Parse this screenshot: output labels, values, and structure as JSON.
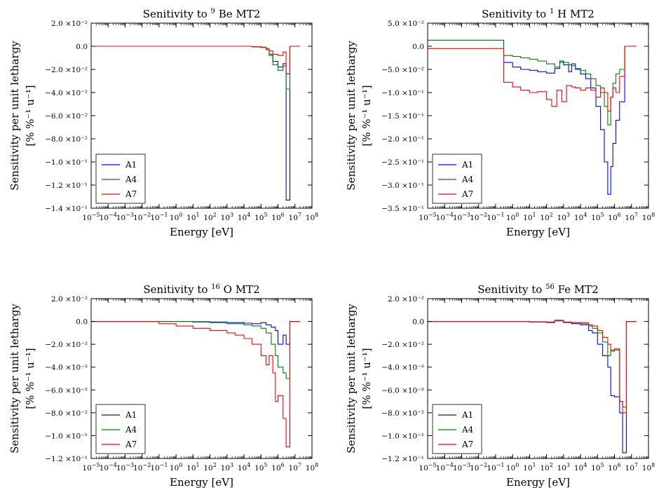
{
  "colors": {
    "A1": "#0000ff",
    "A4": "#008000",
    "A7": "#ff0000"
  },
  "chart_data": [
    {
      "type": "line",
      "title_prefix": "Senitivity to ",
      "title_sup": "9",
      "title_rest": "Be MT2",
      "xlabel": "Energy [eV]",
      "ylabel_line1": "Sensitivity per unit lethargy",
      "ylabel_line2": "[% %⁻¹ u⁻¹]",
      "x_scale": "log",
      "xlim": [
        1e-05,
        100000000.0
      ],
      "ylim": [
        -0.14,
        0.02
      ],
      "yticks": [
        0.02,
        0,
        -0.02,
        -0.04,
        -0.06,
        -0.08,
        -0.1,
        -0.12,
        -0.14
      ],
      "ytick_labels": [
        "2.0 ×10⁻²",
        "0.0",
        "−2.0 ×10⁻²",
        "−4.0 ×10⁻²",
        "−6.0 ×10⁻²",
        "−8.0 ×10⁻²",
        "−1.0 ×10⁻¹",
        "−1.2 ×10⁻¹",
        "−1.4 ×10⁻¹"
      ],
      "legend_position": "lower left",
      "series": [
        {
          "name": "A1",
          "x": [
            1e-05,
            10000.0,
            30000.0,
            100000.0,
            200000.0,
            300000.0,
            500000.0,
            1000000.0,
            2000000.0,
            3000000.0,
            5000000.0,
            20000000.0
          ],
          "y": [
            0,
            0,
            -0.0005,
            -0.001,
            -0.003,
            -0.007,
            -0.013,
            -0.018,
            -0.015,
            -0.133,
            0,
            0
          ]
        },
        {
          "name": "A4",
          "x": [
            1e-05,
            10000.0,
            30000.0,
            100000.0,
            200000.0,
            300000.0,
            500000.0,
            1000000.0,
            2000000.0,
            3000000.0,
            5000000.0,
            20000000.0
          ],
          "y": [
            0,
            0,
            -0.0005,
            -0.001,
            -0.003,
            -0.008,
            -0.016,
            -0.021,
            -0.017,
            -0.037,
            0,
            0
          ]
        },
        {
          "name": "A7",
          "x": [
            1e-05,
            10000.0,
            30000.0,
            100000.0,
            200000.0,
            300000.0,
            500000.0,
            1000000.0,
            2000000.0,
            3000000.0,
            5000000.0,
            20000000.0
          ],
          "y": [
            0,
            0,
            -0.0003,
            -0.0008,
            -0.002,
            -0.004,
            -0.007,
            -0.008,
            -0.005,
            -0.024,
            0,
            0
          ]
        }
      ]
    },
    {
      "type": "line",
      "title_prefix": "Senitivity to ",
      "title_sup": "1",
      "title_rest": "H MT2",
      "xlabel": "Energy [eV]",
      "ylabel_line1": "Sensitivity per unit lethargy",
      "ylabel_line2": "[% %⁻¹ u⁻¹]",
      "x_scale": "log",
      "xlim": [
        1e-05,
        100000000.0
      ],
      "ylim": [
        -0.35,
        0.05
      ],
      "yticks": [
        0.05,
        0,
        -0.05,
        -0.1,
        -0.15,
        -0.2,
        -0.25,
        -0.3,
        -0.35
      ],
      "ytick_labels": [
        "5.0 ×10⁻²",
        "0.0",
        "−5.0 ×10⁻²",
        "−1.0 ×10⁻¹",
        "−1.5 ×10⁻¹",
        "−2.0 ×10⁻¹",
        "−2.5 ×10⁻¹",
        "−3.0 ×10⁻¹",
        "−3.5 ×10⁻¹"
      ],
      "legend_position": "lower left",
      "series": [
        {
          "name": "A1",
          "x": [
            1e-05,
            0.1,
            0.3,
            1,
            3,
            10,
            30,
            100,
            300,
            600,
            1000,
            2000,
            3000,
            5000,
            10000.0,
            20000.0,
            40000.0,
            80000.0,
            150000.0,
            250000.0,
            400000.0,
            600000.0,
            800000.0,
            1200000.0,
            2000000.0,
            4000000.0,
            20000000.0
          ],
          "y": [
            0.013,
            0.013,
            -0.035,
            -0.045,
            -0.05,
            -0.052,
            -0.055,
            -0.058,
            -0.048,
            -0.032,
            -0.04,
            -0.055,
            -0.038,
            -0.05,
            -0.06,
            -0.07,
            -0.09,
            -0.13,
            -0.18,
            -0.25,
            -0.32,
            -0.26,
            -0.21,
            -0.16,
            -0.12,
            0,
            0
          ]
        },
        {
          "name": "A4",
          "x": [
            1e-05,
            0.1,
            0.3,
            1,
            3,
            10,
            30,
            100,
            300,
            600,
            1000,
            2000,
            3000,
            5000,
            10000.0,
            20000.0,
            40000.0,
            80000.0,
            150000.0,
            250000.0,
            400000.0,
            600000.0,
            800000.0,
            1200000.0,
            2000000.0,
            4000000.0,
            20000000.0
          ],
          "y": [
            0.013,
            0.013,
            -0.02,
            -0.022,
            -0.025,
            -0.028,
            -0.032,
            -0.038,
            -0.045,
            -0.035,
            -0.035,
            -0.04,
            -0.042,
            -0.048,
            -0.052,
            -0.06,
            -0.07,
            -0.085,
            -0.1,
            -0.13,
            -0.17,
            -0.11,
            -0.08,
            -0.06,
            -0.05,
            0,
            0
          ]
        },
        {
          "name": "A7",
          "x": [
            1e-05,
            0.1,
            0.3,
            1,
            3,
            10,
            30,
            100,
            200,
            400,
            800,
            1500,
            3000,
            5000,
            10000.0,
            20000.0,
            40000.0,
            80000.0,
            150000.0,
            250000.0,
            400000.0,
            600000.0,
            800000.0,
            1200000.0,
            2000000.0,
            4000000.0,
            20000000.0
          ],
          "y": [
            -0.005,
            -0.005,
            -0.078,
            -0.088,
            -0.095,
            -0.1,
            -0.098,
            -0.115,
            -0.13,
            -0.095,
            -0.12,
            -0.085,
            -0.088,
            -0.09,
            -0.095,
            -0.09,
            -0.095,
            -0.11,
            -0.09,
            -0.1,
            -0.14,
            -0.11,
            -0.09,
            -0.1,
            -0.065,
            0,
            0
          ]
        }
      ]
    },
    {
      "type": "line",
      "title_prefix": "Senitivity to ",
      "title_sup": "16",
      "title_rest": "O MT2",
      "xlabel": "Energy [eV]",
      "ylabel_line1": "Sensitivity per unit lethargy",
      "ylabel_line2": "[% %⁻¹ u⁻¹]",
      "x_scale": "log",
      "xlim": [
        1e-05,
        100000000.0
      ],
      "ylim": [
        -0.12,
        0.02
      ],
      "yticks": [
        0.02,
        0,
        -0.02,
        -0.04,
        -0.06,
        -0.08,
        -0.1,
        -0.12
      ],
      "ytick_labels": [
        "2.0 ×10⁻²",
        "0.0",
        "−2.0 ×10⁻²",
        "−4.0 ×10⁻²",
        "−6.0 ×10⁻²",
        "−8.0 ×10⁻²",
        "−1.0 ×10⁻¹",
        "−1.2 ×10⁻¹"
      ],
      "legend_position": "lower left",
      "series": [
        {
          "name": "A1",
          "x": [
            1e-05,
            1,
            10,
            100,
            1000,
            10000.0,
            30000.0,
            100000.0,
            200000.0,
            400000.0,
            700000.0,
            1000000.0,
            2000000.0,
            3000000.0,
            5000000.0,
            20000000.0
          ],
          "y": [
            0,
            0,
            -0.0002,
            -0.0005,
            -0.001,
            -0.0015,
            -0.002,
            -0.001,
            -0.003,
            -0.005,
            -0.008,
            -0.02,
            -0.012,
            -0.02,
            0,
            0
          ]
        },
        {
          "name": "A4",
          "x": [
            1e-05,
            1,
            10,
            100,
            1000,
            10000.0,
            30000.0,
            100000.0,
            200000.0,
            400000.0,
            700000.0,
            1000000.0,
            2000000.0,
            3000000.0,
            5000000.0,
            20000000.0
          ],
          "y": [
            0,
            0,
            -0.0005,
            -0.001,
            -0.002,
            -0.003,
            -0.004,
            -0.006,
            -0.01,
            -0.02,
            -0.03,
            -0.04,
            -0.045,
            -0.05,
            0,
            0
          ]
        },
        {
          "name": "A7",
          "x": [
            1e-05,
            0.1,
            1,
            10,
            100,
            1000,
            3000,
            10000.0,
            30000.0,
            100000.0,
            200000.0,
            300000.0,
            500000.0,
            700000.0,
            1000000.0,
            2000000.0,
            3000000.0,
            5000000.0,
            20000000.0
          ],
          "y": [
            0,
            -0.002,
            -0.004,
            -0.006,
            -0.008,
            -0.01,
            -0.012,
            -0.015,
            -0.02,
            -0.03,
            -0.038,
            -0.03,
            -0.045,
            -0.07,
            -0.065,
            -0.085,
            -0.11,
            0,
            0
          ]
        }
      ]
    },
    {
      "type": "line",
      "title_prefix": "Senitivity to ",
      "title_sup": "56",
      "title_rest": "Fe MT2",
      "xlabel": "Energy [eV]",
      "ylabel_line1": "Sensitivity per unit lethargy",
      "ylabel_line2": "[% %⁻¹ u⁻¹]",
      "x_scale": "log",
      "xlim": [
        1e-05,
        100000000.0
      ],
      "ylim": [
        -0.12,
        0.02
      ],
      "yticks": [
        0.02,
        0,
        -0.02,
        -0.04,
        -0.06,
        -0.08,
        -0.1,
        -0.12
      ],
      "ytick_labels": [
        "2.0 ×10⁻²",
        "0.0",
        "−2.0 ×10⁻²",
        "−4.0 ×10⁻²",
        "−6.0 ×10⁻²",
        "−8.0 ×10⁻²",
        "−1.0 ×10⁻¹",
        "−1.2 ×10⁻¹"
      ],
      "legend_position": "lower left",
      "series": [
        {
          "name": "A1",
          "x": [
            1e-05,
            1,
            10,
            100,
            300,
            1000,
            3000,
            10000.0,
            30000.0,
            50000.0,
            100000.0,
            200000.0,
            400000.0,
            600000.0,
            1000000.0,
            2000000.0,
            3000000.0,
            5000000.0,
            20000000.0
          ],
          "y": [
            0,
            0,
            -0.0005,
            -0.001,
            0.001,
            -0.001,
            -0.002,
            -0.003,
            -0.008,
            -0.01,
            -0.02,
            -0.03,
            -0.04,
            -0.065,
            -0.066,
            -0.08,
            -0.115,
            0,
            0
          ]
        },
        {
          "name": "A4",
          "x": [
            1e-05,
            1,
            10,
            100,
            300,
            1000,
            3000,
            10000.0,
            30000.0,
            50000.0,
            100000.0,
            200000.0,
            400000.0,
            600000.0,
            1000000.0,
            2000000.0,
            3000000.0,
            5000000.0,
            20000000.0
          ],
          "y": [
            0,
            0,
            -0.0004,
            -0.0008,
            0.0005,
            -0.0008,
            -0.001,
            -0.002,
            -0.004,
            -0.006,
            -0.01,
            -0.018,
            -0.03,
            -0.025,
            -0.025,
            -0.07,
            -0.075,
            0,
            0
          ]
        },
        {
          "name": "A7",
          "x": [
            1e-05,
            1,
            10,
            100,
            300,
            1000,
            3000,
            10000.0,
            30000.0,
            50000.0,
            100000.0,
            200000.0,
            400000.0,
            600000.0,
            1000000.0,
            2000000.0,
            3000000.0,
            5000000.0,
            20000000.0
          ],
          "y": [
            0,
            0,
            -0.0003,
            -0.0005,
            0.0008,
            -0.0005,
            -0.001,
            -0.001,
            -0.003,
            -0.004,
            -0.008,
            -0.014,
            -0.02,
            -0.026,
            -0.024,
            -0.07,
            -0.08,
            0,
            0
          ]
        }
      ]
    }
  ]
}
